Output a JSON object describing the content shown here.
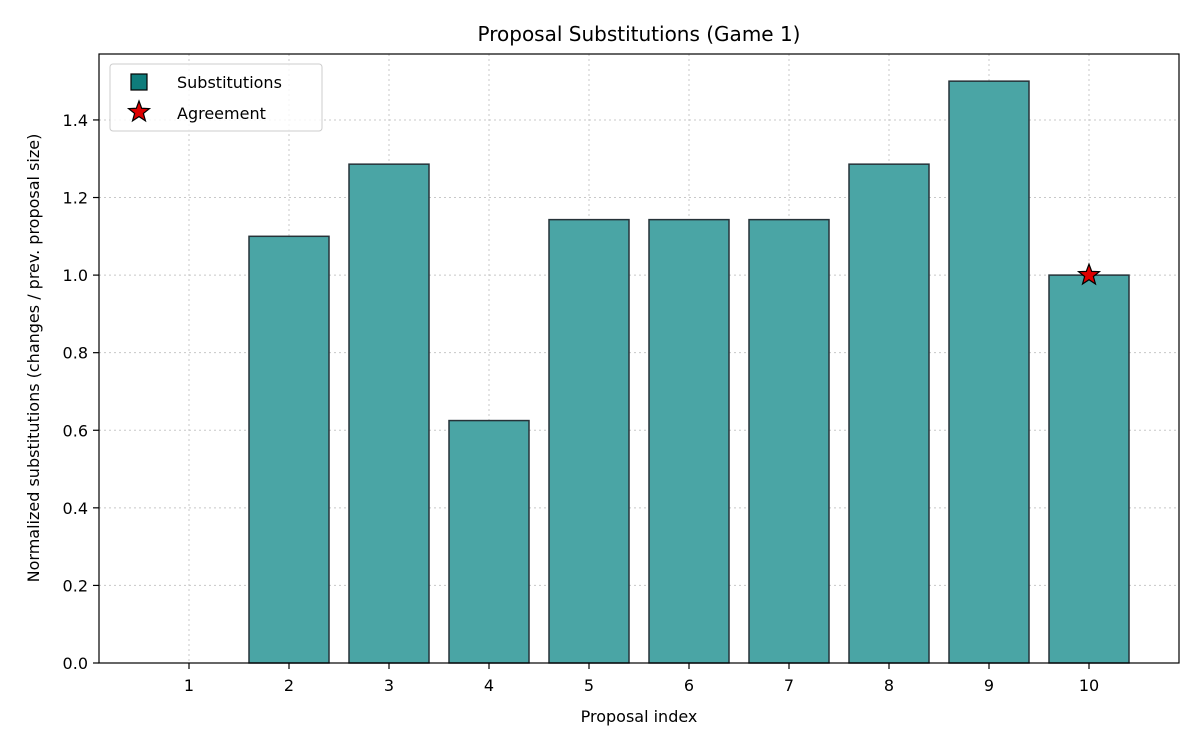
{
  "chart_data": {
    "type": "bar",
    "title": "Proposal Substitutions (Game 1)",
    "xlabel": "Proposal index",
    "ylabel": "Normalized substitutions (changes / prev. proposal size)",
    "categories": [
      "1",
      "2",
      "3",
      "4",
      "5",
      "6",
      "7",
      "8",
      "9",
      "10"
    ],
    "series": [
      {
        "name": "Substitutions",
        "values": [
          0.0,
          1.1,
          1.286,
          0.625,
          1.143,
          1.143,
          1.143,
          1.286,
          1.5,
          1.0
        ],
        "color": "#4aa5a5",
        "edge_color": "#263238"
      }
    ],
    "markers": [
      {
        "name": "Agreement",
        "category": "10",
        "value": 1.0,
        "shape": "star",
        "color": "#dd0000"
      }
    ],
    "ylim": [
      0.0,
      1.57
    ],
    "yticks": [
      "0.0",
      "0.2",
      "0.4",
      "0.6",
      "0.8",
      "1.0",
      "1.2",
      "1.4"
    ],
    "grid": true,
    "legend": {
      "position": "top-left",
      "entries": [
        "Substitutions",
        "Agreement"
      ]
    }
  }
}
